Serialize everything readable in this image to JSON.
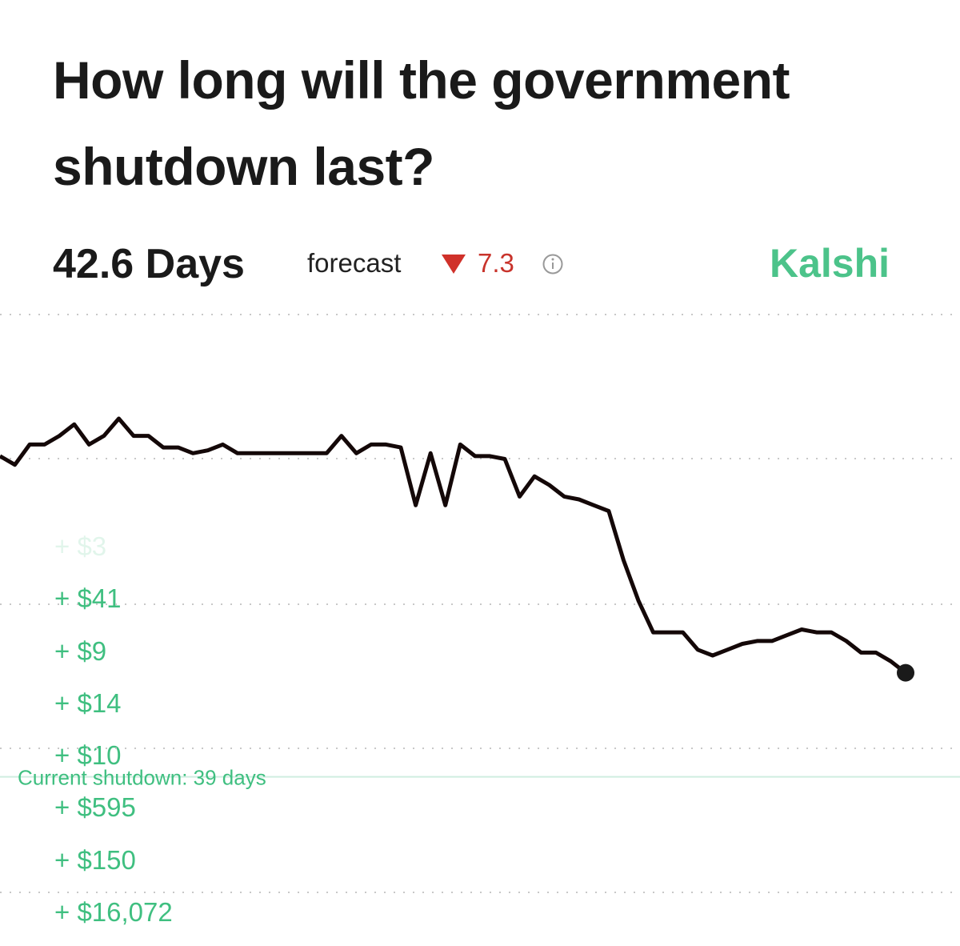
{
  "header": {
    "title": "How long will the government shutdown last?",
    "forecast_value": "42.6 Days",
    "forecast_word": "forecast",
    "change": "7.3",
    "brand": "Kalshi"
  },
  "chart_data": {
    "type": "line",
    "color": "#140808",
    "values": [
      50.1,
      49.8,
      50.5,
      50.5,
      50.8,
      51.2,
      50.5,
      50.8,
      51.4,
      50.8,
      50.8,
      50.4,
      50.4,
      50.2,
      50.3,
      50.5,
      50.2,
      50.2,
      50.2,
      50.2,
      50.2,
      50.2,
      50.2,
      50.8,
      50.2,
      50.5,
      50.5,
      50.4,
      48.4,
      50.2,
      48.4,
      50.5,
      50.1,
      50.1,
      50.0,
      48.7,
      49.4,
      49.1,
      48.7,
      48.6,
      48.4,
      48.2,
      46.5,
      45.1,
      44.0,
      44.0,
      44.0,
      43.4,
      43.2,
      43.4,
      43.6,
      43.7,
      43.7,
      43.9,
      44.1,
      44.0,
      44.0,
      43.7,
      43.3,
      43.3,
      43.0,
      42.6
    ],
    "ylim": [
      35,
      55
    ],
    "reference_line": {
      "value": 39,
      "label": "Current shutdown: 39 days"
    }
  },
  "trades": [
    "+ $3",
    "+ $41",
    "+ $9",
    "+ $14",
    "+ $10",
    "+ $595",
    "+ $150",
    "+ $16,072"
  ]
}
